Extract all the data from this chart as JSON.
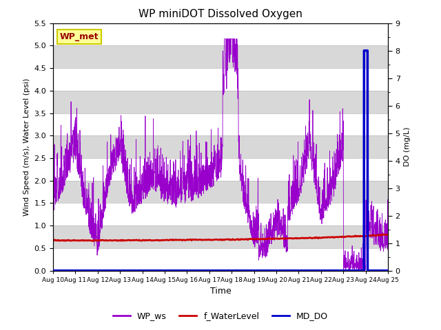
{
  "title": "WP miniDOT Dissolved Oxygen",
  "xlabel": "Time",
  "ylabel_left": "Wind Speed (m/s), Water Level (psi)",
  "ylabel_right": "DO (mg/L)",
  "ylim_left": [
    0.0,
    5.5
  ],
  "ylim_right": [
    0.0,
    9.0
  ],
  "yticks_left": [
    0.0,
    0.5,
    1.0,
    1.5,
    2.0,
    2.5,
    3.0,
    3.5,
    4.0,
    4.5,
    5.0,
    5.5
  ],
  "yticks_right": [
    0.0,
    1.0,
    2.0,
    3.0,
    4.0,
    5.0,
    6.0,
    7.0,
    8.0,
    9.0
  ],
  "xtick_labels": [
    "Aug 10",
    "Aug 11",
    "Aug 12",
    "Aug 13",
    "Aug 14",
    "Aug 15",
    "Aug 16",
    "Aug 17",
    "Aug 18",
    "Aug 19",
    "Aug 20",
    "Aug 21",
    "Aug 22",
    "Aug 23",
    "Aug 24",
    "Aug 25"
  ],
  "wp_met_box_color": "#ffff99",
  "wp_met_text_color": "#990000",
  "wp_met_edge_color": "#cccc00",
  "wp_ws_color": "#9900cc",
  "f_water_color": "#cc0000",
  "md_do_color": "#0000cc",
  "legend_labels": [
    "WP_ws",
    "f_WaterLevel",
    "MD_DO"
  ],
  "bg_color_dark": "#d8d8d8",
  "bg_color_light": "#ebebeb",
  "grid_color": "#ffffff",
  "n_days": 15,
  "n_pts_ws": 2000,
  "n_pts_wl": 400,
  "random_seed": 12
}
